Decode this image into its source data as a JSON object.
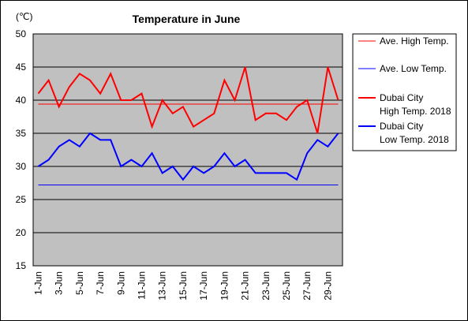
{
  "chart_data": {
    "type": "line",
    "title": "Temperature in June",
    "ylabel": "(℃)",
    "xlabel": "",
    "ylim": [
      15,
      50
    ],
    "yticks": [
      15,
      20,
      25,
      30,
      35,
      40,
      45,
      50
    ],
    "grid": true,
    "legend_position": "right",
    "plot_background": "#c0c0c0",
    "categories": [
      "1-Jun",
      "2-Jun",
      "3-Jun",
      "4-Jun",
      "5-Jun",
      "6-Jun",
      "7-Jun",
      "8-Jun",
      "9-Jun",
      "10-Jun",
      "11-Jun",
      "12-Jun",
      "13-Jun",
      "14-Jun",
      "15-Jun",
      "16-Jun",
      "17-Jun",
      "18-Jun",
      "19-Jun",
      "20-Jun",
      "21-Jun",
      "22-Jun",
      "23-Jun",
      "24-Jun",
      "25-Jun",
      "26-Jun",
      "27-Jun",
      "28-Jun",
      "29-Jun",
      "30-Jun"
    ],
    "xtick_labels": [
      "1-Jun",
      "3-Jun",
      "5-Jun",
      "7-Jun",
      "9-Jun",
      "11-Jun",
      "13-Jun",
      "15-Jun",
      "17-Jun",
      "19-Jun",
      "21-Jun",
      "23-Jun",
      "25-Jun",
      "27-Jun",
      "29-Jun"
    ],
    "series": [
      {
        "name": "Ave. High Temp.",
        "color": "#ff0000",
        "width": 1,
        "values": [
          39.4,
          39.4,
          39.4,
          39.4,
          39.4,
          39.4,
          39.4,
          39.4,
          39.4,
          39.4,
          39.4,
          39.4,
          39.4,
          39.4,
          39.4,
          39.4,
          39.4,
          39.4,
          39.4,
          39.4,
          39.4,
          39.4,
          39.4,
          39.4,
          39.4,
          39.4,
          39.4,
          39.4,
          39.4,
          39.4
        ]
      },
      {
        "name": "Ave. Low Temp.",
        "color": "#0000ff",
        "width": 1,
        "values": [
          27.2,
          27.2,
          27.2,
          27.2,
          27.2,
          27.2,
          27.2,
          27.2,
          27.2,
          27.2,
          27.2,
          27.2,
          27.2,
          27.2,
          27.2,
          27.2,
          27.2,
          27.2,
          27.2,
          27.2,
          27.2,
          27.2,
          27.2,
          27.2,
          27.2,
          27.2,
          27.2,
          27.2,
          27.2,
          27.2
        ]
      },
      {
        "name": "Dubai City High Temp. 2018",
        "legend_lines": [
          "Dubai City",
          "High Temp. 2018"
        ],
        "color": "#ff0000",
        "width": 2,
        "values": [
          41,
          43,
          39,
          42,
          44,
          43,
          41,
          44,
          40,
          40,
          41,
          36,
          40,
          38,
          39,
          36,
          37,
          38,
          43,
          40,
          45,
          37,
          38,
          38,
          37,
          39,
          40,
          35,
          45,
          40
        ]
      },
      {
        "name": "Dubai City Low Temp. 2018",
        "legend_lines": [
          "Dubai City",
          "Low Temp. 2018"
        ],
        "color": "#0000ff",
        "width": 2,
        "values": [
          30,
          31,
          33,
          34,
          33,
          35,
          34,
          34,
          30,
          31,
          30,
          32,
          29,
          30,
          28,
          30,
          29,
          30,
          32,
          30,
          31,
          29,
          29,
          29,
          29,
          28,
          32,
          34,
          33,
          35
        ]
      }
    ]
  }
}
